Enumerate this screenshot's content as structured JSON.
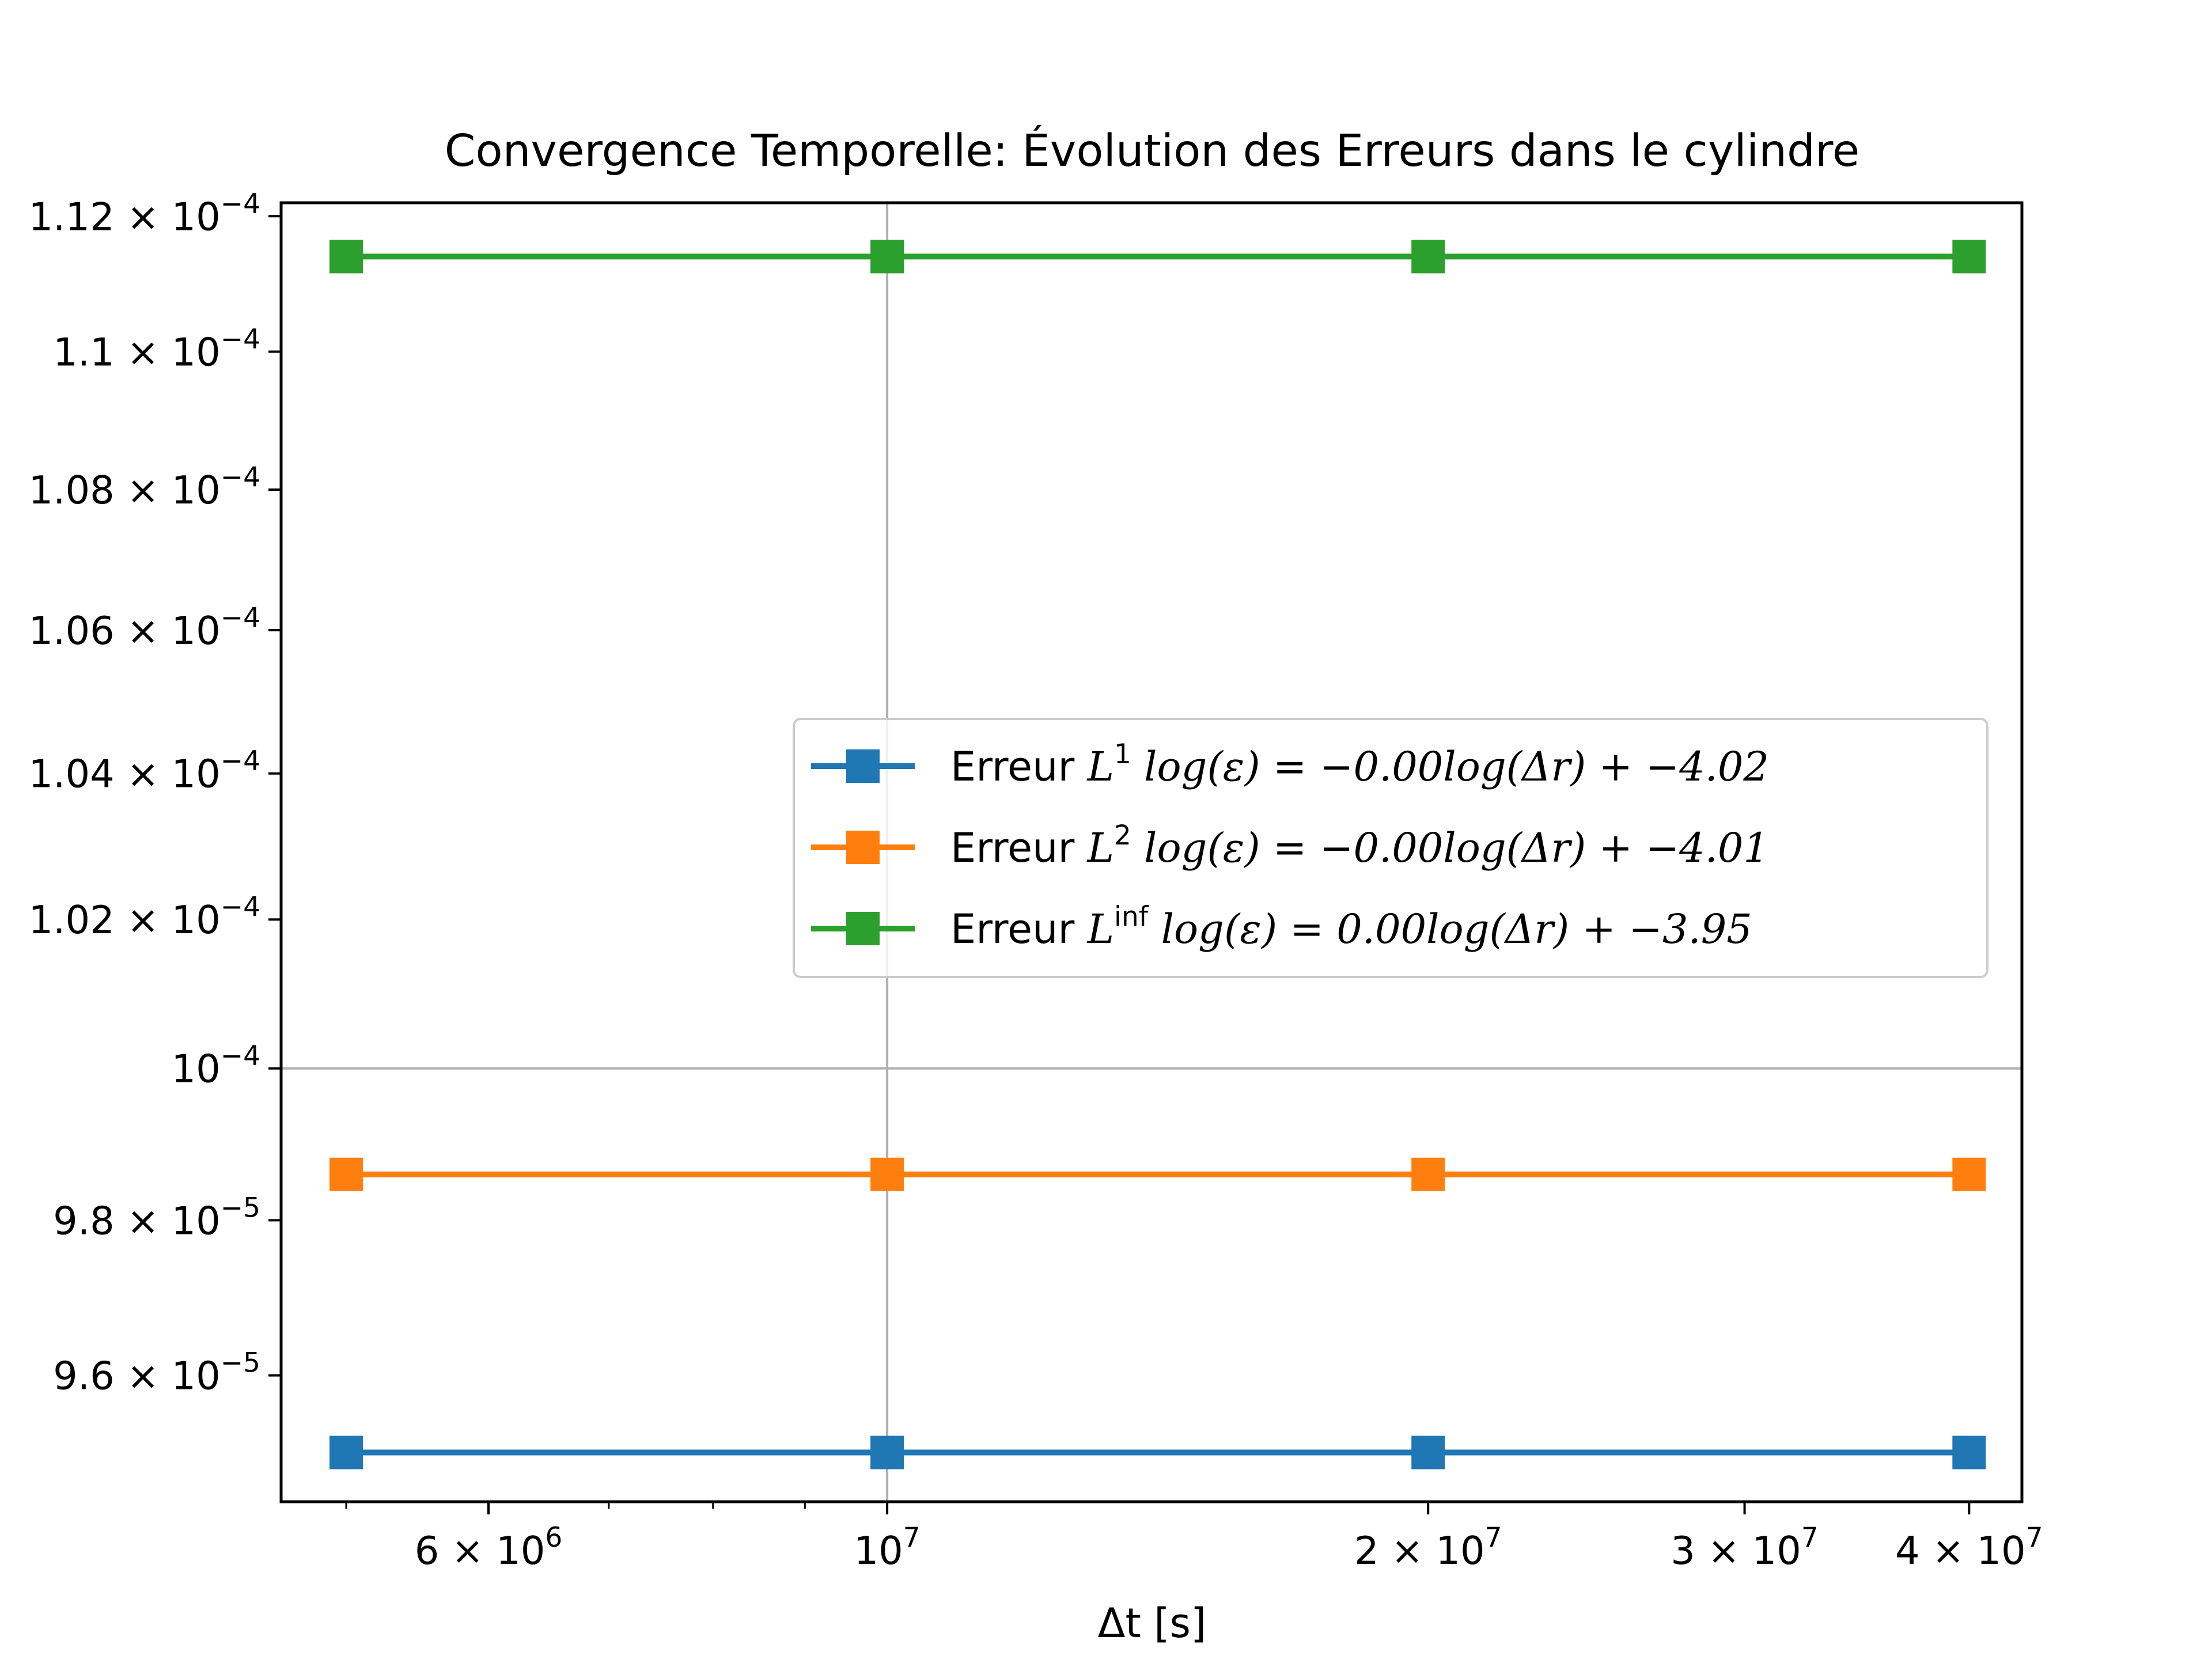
{
  "chart_data": {
    "type": "line",
    "title": "Convergence Temporelle: Évolution des Erreurs dans le cylindre",
    "xlabel": "Δt [s]",
    "ylabel": "",
    "xscale": "log",
    "yscale": "log",
    "grid": "major",
    "legend_position": "center-right",
    "x": [
      5000000,
      10000000,
      20000000,
      40000000
    ],
    "xlim": [
      4600000,
      42800000
    ],
    "ylim": [
      9.44e-05,
      0.0001122
    ],
    "x_ticks": [
      {
        "value": 6000000,
        "mantissa": "6",
        "exponent": "6"
      },
      {
        "value": 10000000,
        "mantissa": "",
        "exponent": "7"
      },
      {
        "value": 20000000,
        "mantissa": "2",
        "exponent": "7"
      },
      {
        "value": 30000000,
        "mantissa": "3",
        "exponent": "7"
      },
      {
        "value": 40000000,
        "mantissa": "4",
        "exponent": "7"
      }
    ],
    "y_ticks": [
      {
        "value": 9.6e-05,
        "mantissa": "9.6",
        "exponent": "−5"
      },
      {
        "value": 9.8e-05,
        "mantissa": "9.8",
        "exponent": "−5"
      },
      {
        "value": 0.0001,
        "mantissa": "",
        "exponent": "−4"
      },
      {
        "value": 0.000102,
        "mantissa": "1.02",
        "exponent": "−4"
      },
      {
        "value": 0.000104,
        "mantissa": "1.04",
        "exponent": "−4"
      },
      {
        "value": 0.000106,
        "mantissa": "1.06",
        "exponent": "−4"
      },
      {
        "value": 0.000108,
        "mantissa": "1.08",
        "exponent": "−4"
      },
      {
        "value": 0.00011,
        "mantissa": "1.1",
        "exponent": "−4"
      },
      {
        "value": 0.000112,
        "mantissa": "1.12",
        "exponent": "−4"
      }
    ],
    "series": [
      {
        "name": "Erreur L^1   log(ε) = −0.00log(Δr) + −4.02",
        "label_prefix": "Erreur ",
        "norm": "L",
        "norm_sup": "1",
        "equation": "log(ε) = −0.00log(Δr) + −4.02",
        "color": "#1f77b4",
        "marker": "square",
        "values": [
          9.502e-05,
          9.502e-05,
          9.502e-05,
          9.502e-05
        ]
      },
      {
        "name": "Erreur L^2   log(ε) = −0.00log(Δr) + −4.01",
        "label_prefix": "Erreur ",
        "norm": "L",
        "norm_sup": "2",
        "equation": "log(ε) = −0.00log(Δr) + −4.01",
        "color": "#ff7f0e",
        "marker": "square",
        "values": [
          9.86e-05,
          9.86e-05,
          9.86e-05,
          9.86e-05
        ]
      },
      {
        "name": "Erreur L^inf   log(ε) = 0.00log(Δr) + −3.95",
        "label_prefix": "Erreur ",
        "norm": "L",
        "norm_sup": "inf",
        "equation": "log(ε) = 0.00log(Δr) + −3.95",
        "color": "#2ca02c",
        "marker": "square",
        "values": [
          0.0001114,
          0.0001114,
          0.0001114,
          0.0001114
        ]
      }
    ]
  }
}
